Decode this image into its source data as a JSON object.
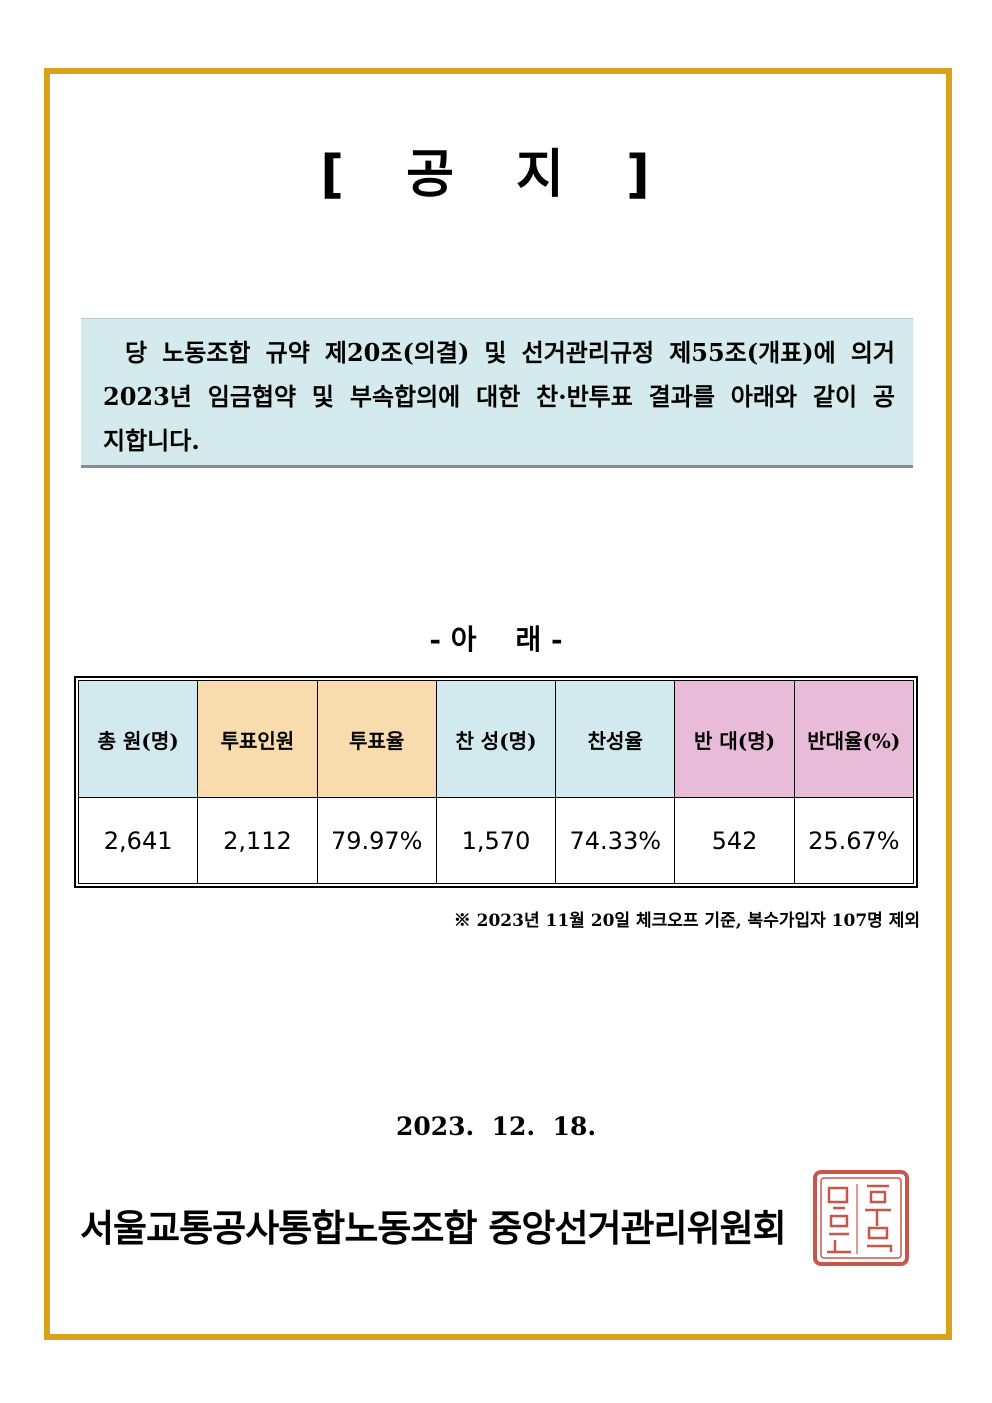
{
  "notice": {
    "title": "[ 공  지 ]",
    "intro": "당 노동조합 규약 제20조(의결) 및 선거관리규정 제55조(개표)에 의거 2023년 임금협약 및 부속합의에 대한 찬·반투표 결과를 아래와 같이 공지합니다.",
    "subheading": "- 아    래 -",
    "table": {
      "headers": [
        "총 원(명)",
        "투표인원",
        "투표율",
        "찬 성(명)",
        "찬성율",
        "반 대(명)",
        "반대율(%)"
      ],
      "values": [
        "2,641",
        "2,112",
        "79.97%",
        "1,570",
        "74.33%",
        "542",
        "25.67%"
      ]
    },
    "footnote": "※ 2023년 11월 20일 체크오프 기준, 복수가입자 107명 제외",
    "date": "2023.  12.  18.",
    "organization": "서울교통공사통합노동조합 중앙선거관리위원회"
  },
  "colors": {
    "frame": "#d9a21b",
    "intro_bg": "#d4eaed",
    "header_blue": "#d2e9ee",
    "header_tan": "#f8dcad",
    "header_pink": "#e8bcd9",
    "seal": "#c0392b"
  },
  "icons": {
    "seal": "official-seal-stamp"
  }
}
